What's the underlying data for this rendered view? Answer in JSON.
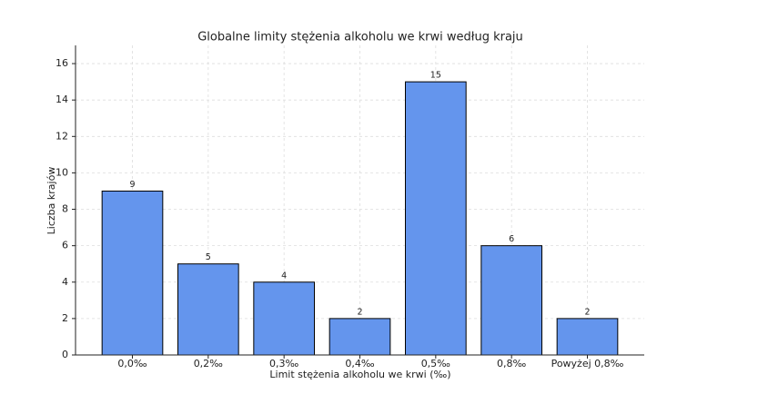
{
  "chart_data": {
    "type": "bar",
    "title": "Globalne limity stężenia alkoholu we krwi według kraju",
    "x_label": "Limit stężenia alkoholu we krwi (‰)",
    "y_label": "Liczba krajów",
    "categories": [
      "0,0‰",
      "0,2‰",
      "0,3‰",
      "0,4‰",
      "0,5‰",
      "0,8‰",
      "Powyżej 0,8‰"
    ],
    "values": [
      9,
      5,
      4,
      2,
      15,
      6,
      2
    ],
    "color": "#6495ed",
    "edge_color": "#000000",
    "ylim": [
      0,
      17
    ],
    "yticks": [
      0,
      2,
      4,
      6,
      8,
      10,
      12,
      14,
      16
    ],
    "grid": true
  }
}
